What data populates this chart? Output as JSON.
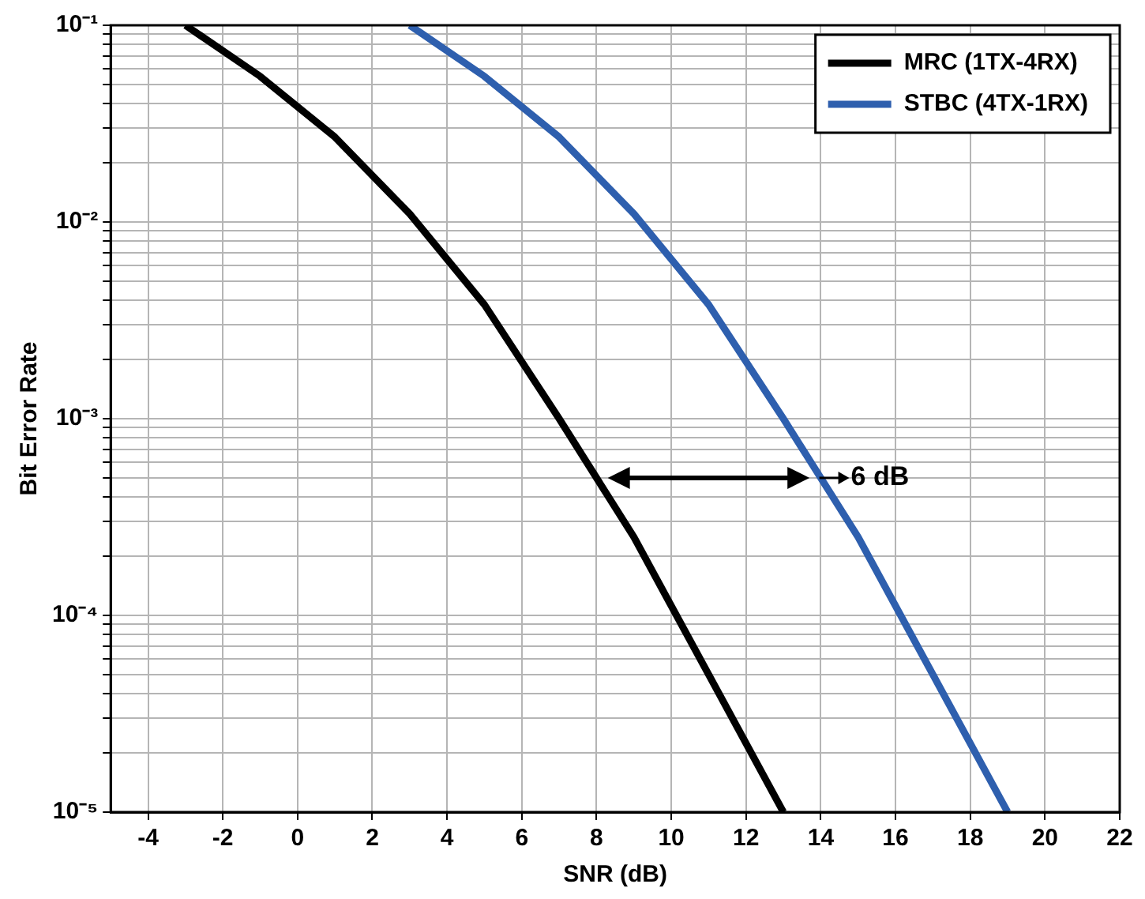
{
  "chart_data": {
    "type": "line",
    "xlabel": "SNR (dB)",
    "ylabel": "Bit Error Rate",
    "xlim": [
      -5,
      22
    ],
    "xticks": [
      -4,
      -2,
      0,
      2,
      4,
      6,
      8,
      10,
      12,
      14,
      16,
      18,
      20,
      22
    ],
    "ylim": [
      1e-05,
      0.1
    ],
    "log": "y",
    "yticks": [
      {
        "value": 1e-05,
        "label": "10⁻⁵"
      },
      {
        "value": 2e-05,
        "label": null
      },
      {
        "value": 3e-05,
        "label": null
      },
      {
        "value": 4e-05,
        "label": null
      },
      {
        "value": 5e-05,
        "label": null
      },
      {
        "value": 6e-05,
        "label": null
      },
      {
        "value": 7e-05,
        "label": null
      },
      {
        "value": 8e-05,
        "label": null
      },
      {
        "value": 9e-05,
        "label": null
      },
      {
        "value": 0.0001,
        "label": "10⁻⁴"
      },
      {
        "value": 0.0002,
        "label": null
      },
      {
        "value": 0.0003,
        "label": null
      },
      {
        "value": 0.0004,
        "label": null
      },
      {
        "value": 0.0005,
        "label": null
      },
      {
        "value": 0.0006,
        "label": null
      },
      {
        "value": 0.0007,
        "label": null
      },
      {
        "value": 0.0008,
        "label": null
      },
      {
        "value": 0.0009,
        "label": null
      },
      {
        "value": 0.001,
        "label": "10⁻³"
      },
      {
        "value": 0.002,
        "label": null
      },
      {
        "value": 0.003,
        "label": null
      },
      {
        "value": 0.004,
        "label": null
      },
      {
        "value": 0.005,
        "label": null
      },
      {
        "value": 0.006,
        "label": null
      },
      {
        "value": 0.007,
        "label": null
      },
      {
        "value": 0.008,
        "label": null
      },
      {
        "value": 0.009,
        "label": null
      },
      {
        "value": 0.01,
        "label": "10⁻²"
      },
      {
        "value": 0.02,
        "label": null
      },
      {
        "value": 0.03,
        "label": null
      },
      {
        "value": 0.04,
        "label": null
      },
      {
        "value": 0.05,
        "label": null
      },
      {
        "value": 0.06,
        "label": null
      },
      {
        "value": 0.07,
        "label": null
      },
      {
        "value": 0.08,
        "label": null
      },
      {
        "value": 0.09,
        "label": null
      },
      {
        "value": 0.1,
        "label": "10⁻¹"
      }
    ],
    "grid": true,
    "legend": "top right",
    "marker": "none",
    "line_style": "solid",
    "series": [
      {
        "name": "MRC (1TX-4RX)",
        "color": "#000000",
        "x": [
          -3,
          -1,
          1,
          3,
          5,
          7,
          9,
          11,
          13
        ],
        "values": [
          0.1,
          0.055,
          0.027,
          0.011,
          0.0038,
          0.001,
          0.00025,
          5e-05,
          1e-05
        ]
      },
      {
        "name": "STBC (4TX-1RX)",
        "color": "#2e5fae",
        "x": [
          3,
          5,
          7,
          9,
          11,
          13,
          15,
          17,
          19
        ],
        "values": [
          0.1,
          0.055,
          0.027,
          0.011,
          0.0038,
          0.001,
          0.00025,
          5e-05,
          1e-05
        ]
      }
    ],
    "annotations": [
      {
        "text": "6 dB",
        "x": 14.3,
        "y": 0.0005
      }
    ]
  }
}
